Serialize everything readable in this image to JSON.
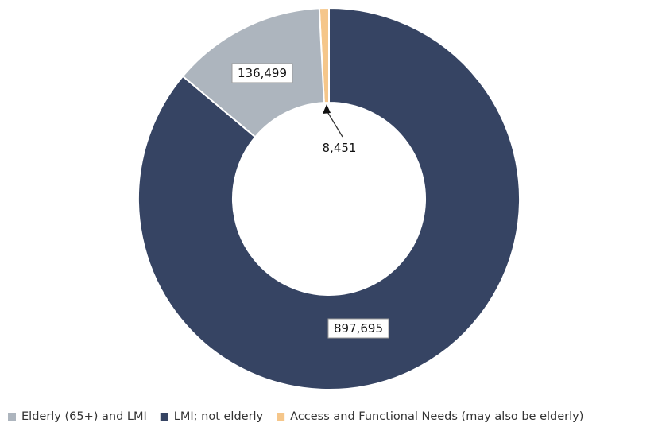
{
  "chart_data": {
    "type": "pie",
    "donut": true,
    "series": [
      {
        "name": "Access and Functional Needs (may also be elderly)",
        "value": 8451,
        "label": "8,451",
        "color": "#F5C68A"
      },
      {
        "name": "LMI; not elderly",
        "value": 897695,
        "label": "897,695",
        "color": "#364463"
      },
      {
        "name": "Elderly (65+) and LMI",
        "value": 136499,
        "label": "136,499",
        "color": "#ADB5BE"
      }
    ],
    "legend": {
      "position": "bottom",
      "order": [
        "Elderly (65+) and LMI",
        "LMI; not elderly",
        "Access and Functional Needs (may also be elderly)"
      ]
    }
  }
}
